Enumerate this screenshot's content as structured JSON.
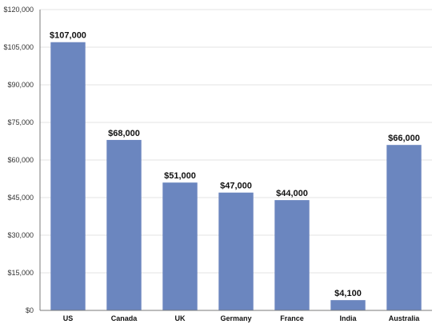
{
  "chart_data": {
    "type": "bar",
    "title": "",
    "xlabel": "",
    "ylabel": "",
    "categories": [
      "US",
      "Canada",
      "UK",
      "Germany",
      "France",
      "India",
      "Australia"
    ],
    "values": [
      107000,
      68000,
      51000,
      47000,
      44000,
      4100,
      66000
    ],
    "data_labels": [
      "$107,000",
      "$68,000",
      "$51,000",
      "$47,000",
      "$44,000",
      "$4,100",
      "$66,000"
    ],
    "ylim": [
      0,
      120000
    ],
    "yticks": [
      0,
      15000,
      30000,
      45000,
      60000,
      75000,
      90000,
      105000,
      120000
    ],
    "ytick_labels": [
      "$0",
      "$15,000",
      "$30,000",
      "$45,000",
      "$60,000",
      "$75,000",
      "$90,000",
      "$105,000",
      "$120,000"
    ],
    "grid": true,
    "legend": "none",
    "bar_color": "#6b86bf"
  }
}
